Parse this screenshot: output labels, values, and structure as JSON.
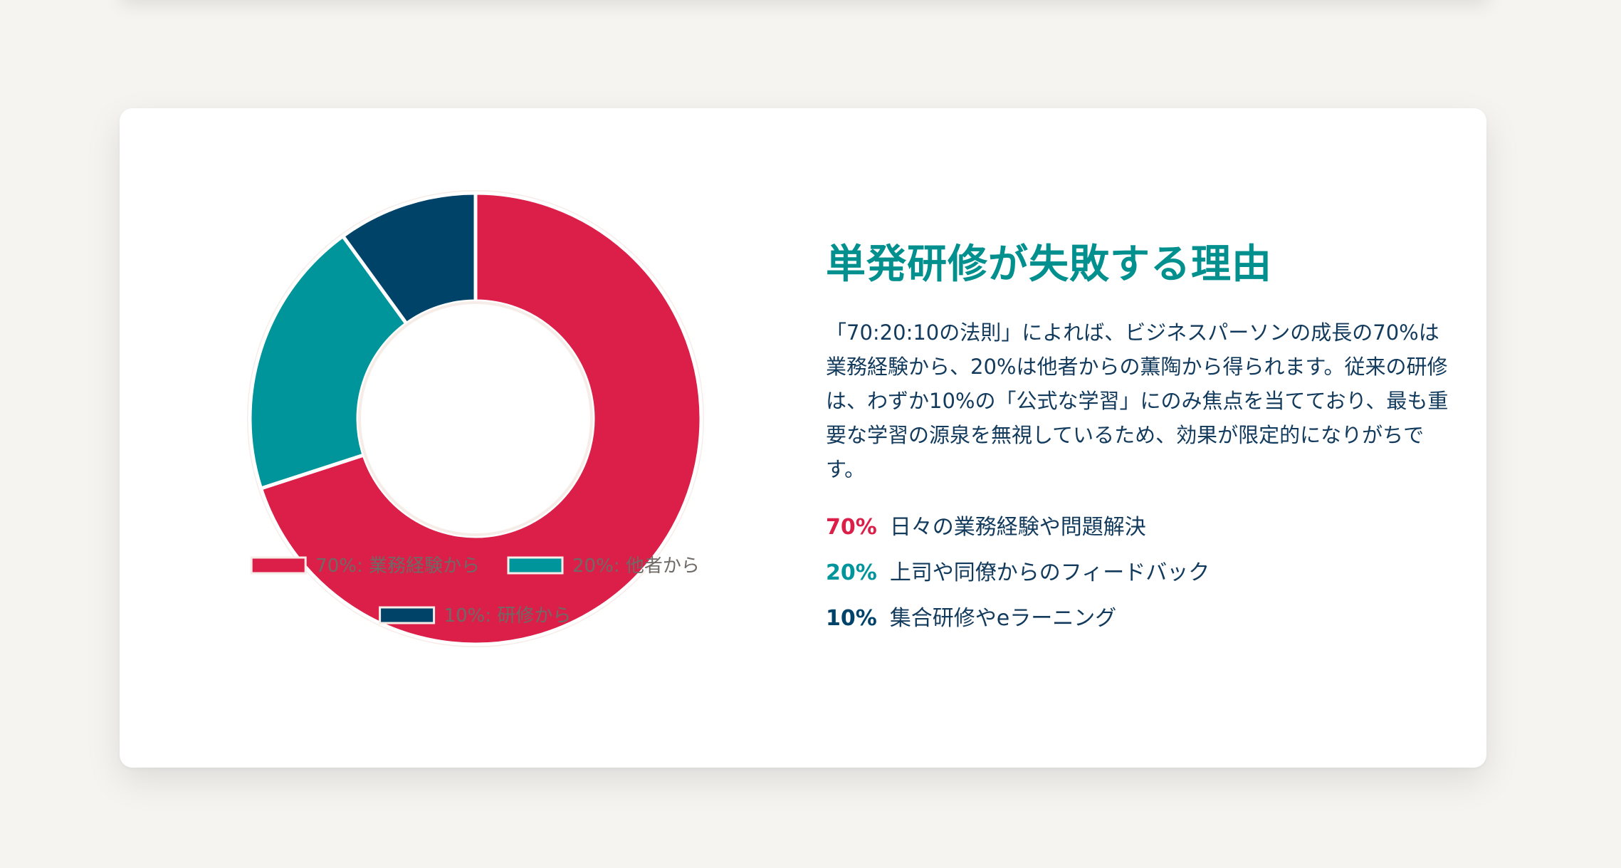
{
  "colors": {
    "red": "#db1f48",
    "teal": "#00959a",
    "navy": "#004369",
    "text_dark": "#123a5c",
    "legend_text": "#6f6a66",
    "title": "#02908f"
  },
  "chart_data": {
    "type": "pie",
    "variant": "doughnut",
    "slices": [
      {
        "label": "70%: 業務経験から",
        "value": 70,
        "color": "#db1f48"
      },
      {
        "label": "20%: 他者から",
        "value": 20,
        "color": "#00959a"
      },
      {
        "label": "10%: 研修から",
        "value": 10,
        "color": "#004369"
      }
    ],
    "legend_position": "bottom"
  },
  "content": {
    "title": "単発研修が失敗する理由",
    "description": "「70:20:10の法則」によれば、ビジネスパーソンの成長の70%は業務経験から、20%は他者からの薫陶から得られます。従来の研修は、わずか10%の「公式な学習」にのみ焦点を当てており、最も重要な学習の源泉を無視しているため、効果が限定的になりがちです。",
    "stats": [
      {
        "pct": "70%",
        "text": "日々の業務経験や問題解決",
        "color": "#db1f48"
      },
      {
        "pct": "20%",
        "text": "上司や同僚からのフィードバック",
        "color": "#00959a"
      },
      {
        "pct": "10%",
        "text": "集合研修やeラーニング",
        "color": "#004369"
      }
    ]
  }
}
